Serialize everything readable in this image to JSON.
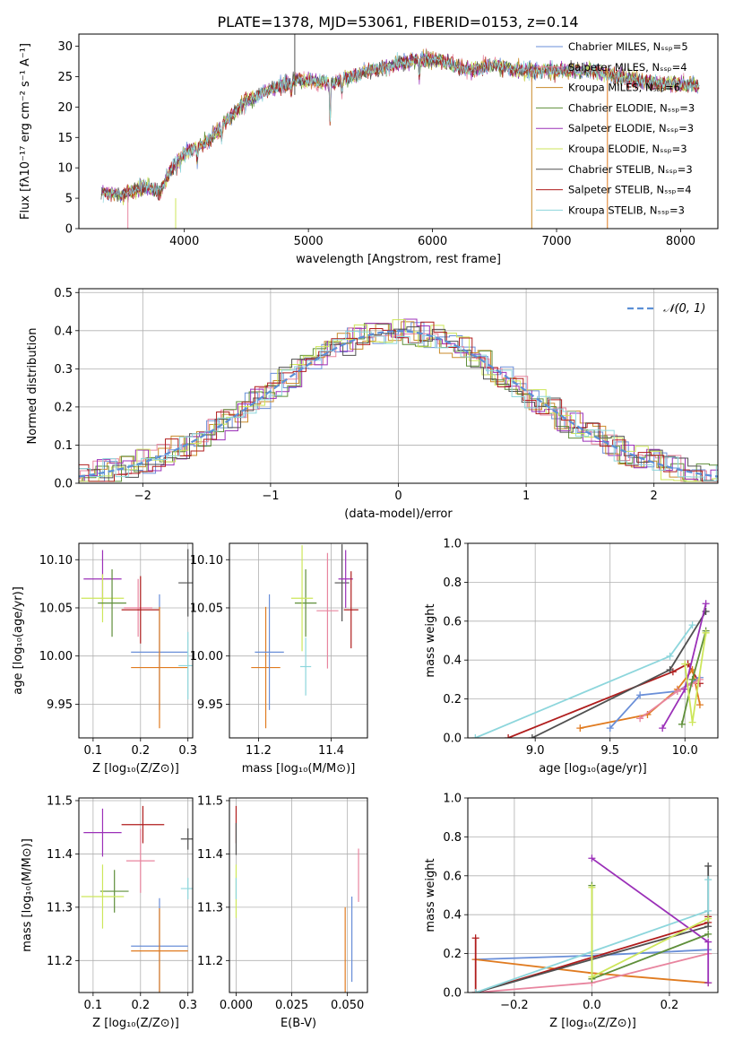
{
  "figure": {
    "title": "PLATE=1378, MJD=53061, FIBERID=0153, z=0.14"
  },
  "colors": {
    "Chabrier MILES": "#6a8fd8",
    "Salpeter MILES": "#e8859f",
    "Kroupa MILES": "#c98a2a",
    "Chabrier ELODIE": "#5f8f3a",
    "Salpeter ELODIE": "#9b30b8",
    "Kroupa ELODIE": "#cde65a",
    "Chabrier STELIB": "#505050",
    "Salpeter STELIB": "#b01d1d",
    "Kroupa STELIB": "#8dd6dc",
    "MILES mass line": "#e07b20",
    "normal curve": "#5b8fd6"
  },
  "chart_data": [
    {
      "id": "spectrum",
      "type": "line",
      "title": "PLATE=1378, MJD=53061, FIBERID=0153, z=0.14",
      "xlabel": "wavelength [Angstrom, rest frame]",
      "ylabel": "Flux [fλ10⁻¹⁷ erg cm⁻² s⁻¹ A⁻¹]",
      "xlim": [
        3150,
        8300
      ],
      "ylim": [
        0,
        32
      ],
      "xticks": [
        4000,
        5000,
        6000,
        7000,
        8000
      ],
      "yticks": [
        0,
        5,
        10,
        15,
        20,
        25,
        30
      ],
      "grid": false,
      "legend_position": "top-right",
      "series": [
        {
          "name": "Chabrier MILES, Nₛₛₚ=5",
          "color_key": "Chabrier MILES"
        },
        {
          "name": "Salpeter MILES, Nₛₛₚ=4",
          "color_key": "Salpeter MILES"
        },
        {
          "name": "Kroupa MILES, Nₛₛₚ=6",
          "color_key": "Kroupa MILES"
        },
        {
          "name": "Chabrier ELODIE, Nₛₛₚ=3",
          "color_key": "Chabrier ELODIE"
        },
        {
          "name": "Salpeter ELODIE, Nₛₛₚ=3",
          "color_key": "Salpeter ELODIE"
        },
        {
          "name": "Kroupa ELODIE, Nₛₛₚ=3",
          "color_key": "Kroupa ELODIE"
        },
        {
          "name": "Chabrier STELIB, Nₛₛₚ=3",
          "color_key": "Chabrier STELIB"
        },
        {
          "name": "Salpeter STELIB, Nₛₛₚ=4",
          "color_key": "Salpeter STELIB"
        },
        {
          "name": "Kroupa STELIB, Nₛₛₚ=3",
          "color_key": "Kroupa STELIB"
        }
      ],
      "continuum": [
        [
          3330,
          6.0
        ],
        [
          3500,
          5.5
        ],
        [
          3700,
          7.0
        ],
        [
          3800,
          6.0
        ],
        [
          3900,
          10.0
        ],
        [
          4000,
          12.5
        ],
        [
          4200,
          14.5
        ],
        [
          4300,
          17.0
        ],
        [
          4500,
          21.0
        ],
        [
          4700,
          23.0
        ],
        [
          4900,
          24.5
        ],
        [
          5200,
          24.0
        ],
        [
          5400,
          25.5
        ],
        [
          5700,
          27.0
        ],
        [
          5900,
          28.0
        ],
        [
          6100,
          27.5
        ],
        [
          6300,
          26.0
        ],
        [
          6500,
          27.0
        ],
        [
          6700,
          26.0
        ],
        [
          6900,
          26.0
        ],
        [
          7100,
          26.0
        ],
        [
          7300,
          26.0
        ],
        [
          7600,
          24.5
        ],
        [
          7800,
          24.0
        ],
        [
          8150,
          23.5
        ]
      ],
      "absorption": [
        [
          3934,
          1.0
        ],
        [
          3968,
          1.0
        ],
        [
          4102,
          2.5
        ],
        [
          4300,
          2.5
        ],
        [
          4861,
          2.0
        ],
        [
          5175,
          6.5
        ],
        [
          5270,
          2.0
        ],
        [
          5893,
          3.0
        ],
        [
          6563,
          1.0
        ]
      ]
    },
    {
      "id": "residuals",
      "type": "line",
      "xlabel": "(data-model)/error",
      "ylabel": "Normed distribution",
      "xlim": [
        -2.5,
        2.5
      ],
      "ylim": [
        0,
        0.51
      ],
      "xticks": [
        -2,
        -1,
        0,
        1,
        2
      ],
      "yticks": [
        0.0,
        0.1,
        0.2,
        0.3,
        0.4,
        0.5
      ],
      "grid": true,
      "legend_position": "top-right",
      "normal_label": "𝒩(0, 1)",
      "bin_width": 0.1
    },
    {
      "id": "age-vs-Z",
      "type": "scatter",
      "xlabel": "Z [log₁₀(Z/Z⊙)]",
      "ylabel": "age  [log₁₀(age/yr)]",
      "xlim": [
        0.07,
        0.31
      ],
      "ylim": [
        9.915,
        10.117
      ],
      "xticks": [
        0.1,
        0.2,
        0.3
      ],
      "yticks": [
        9.95,
        10.0,
        10.05,
        10.1
      ],
      "grid": true,
      "points": [
        {
          "c": "Salpeter ELODIE",
          "x": 0.12,
          "xerr": 0.04,
          "y": 10.08,
          "yerr": 0.03
        },
        {
          "c": "Kroupa ELODIE",
          "x": 0.12,
          "xerr": 0.045,
          "y": 10.06,
          "yerr": 0.025
        },
        {
          "c": "Chabrier ELODIE",
          "x": 0.14,
          "xerr": 0.03,
          "y": 10.055,
          "yerr": 0.035
        },
        {
          "c": "Salpeter MILES",
          "x": 0.195,
          "xerr": 0.03,
          "y": 10.05,
          "yerr": 0.03
        },
        {
          "c": "Salpeter STELIB",
          "x": 0.2,
          "xerr": 0.04,
          "y": 10.048,
          "yerr": 0.035
        },
        {
          "c": "Chabrier MILES",
          "x": 0.24,
          "xerr": 0.06,
          "y": 10.004,
          "yerr": 0.06
        },
        {
          "c": "MILES mass line",
          "x": 0.24,
          "xerr": 0.06,
          "y": 9.988,
          "yerr": 0.063
        },
        {
          "c": "Chabrier STELIB",
          "x": 0.3,
          "xerr": 0.02,
          "y": 10.076,
          "yerr": 0.035
        },
        {
          "c": "Kroupa STELIB",
          "x": 0.3,
          "xerr": 0.02,
          "y": 9.99,
          "yerr": 0.035
        }
      ]
    },
    {
      "id": "age-vs-mass",
      "type": "scatter",
      "xlabel": "mass [log₁₀(M/M⊙)]",
      "xlim": [
        11.12,
        11.5
      ],
      "ylim": [
        9.915,
        10.117
      ],
      "xticks": [
        11.2,
        11.4
      ],
      "yticks": [
        9.95,
        10.0,
        10.05,
        10.1
      ],
      "grid": true,
      "points": [
        {
          "c": "MILES mass line",
          "x": 11.22,
          "xerr": 0.04,
          "y": 9.988,
          "yerr": 0.063
        },
        {
          "c": "Chabrier MILES",
          "x": 11.23,
          "xerr": 0.04,
          "y": 10.004,
          "yerr": 0.06
        },
        {
          "c": "Kroupa STELIB",
          "x": 11.33,
          "xerr": 0.015,
          "y": 9.989,
          "yerr": 0.03
        },
        {
          "c": "Chabrier ELODIE",
          "x": 11.33,
          "xerr": 0.03,
          "y": 10.055,
          "yerr": 0.035
        },
        {
          "c": "Kroupa ELODIE",
          "x": 11.32,
          "xerr": 0.03,
          "y": 10.06,
          "yerr": 0.055
        },
        {
          "c": "Salpeter MILES",
          "x": 11.39,
          "xerr": 0.03,
          "y": 10.047,
          "yerr": 0.06
        },
        {
          "c": "Chabrier STELIB",
          "x": 11.43,
          "xerr": 0.02,
          "y": 10.076,
          "yerr": 0.04
        },
        {
          "c": "Salpeter ELODIE",
          "x": 11.44,
          "xerr": 0.02,
          "y": 10.08,
          "yerr": 0.03
        },
        {
          "c": "Salpeter STELIB",
          "x": 11.455,
          "xerr": 0.02,
          "y": 10.048,
          "yerr": 0.04
        }
      ]
    },
    {
      "id": "weight-vs-age",
      "type": "line",
      "xlabel": "age  [log₁₀(age/yr)]",
      "ylabel": "mass weight",
      "xlim": [
        8.55,
        10.22
      ],
      "ylim": [
        0,
        1.0
      ],
      "xticks": [
        9.0,
        9.5,
        10.0
      ],
      "yticks": [
        0.0,
        0.2,
        0.4,
        0.6,
        0.8,
        1.0
      ],
      "grid": true,
      "series": [
        {
          "c": "Kroupa STELIB",
          "x": [
            8.6,
            9.9,
            10.05
          ],
          "y": [
            0.0,
            0.42,
            0.58
          ]
        },
        {
          "c": "Salpeter STELIB",
          "x": [
            8.82,
            9.92,
            10.02,
            10.1
          ],
          "y": [
            0.0,
            0.34,
            0.38,
            0.28
          ]
        },
        {
          "c": "Chabrier STELIB",
          "x": [
            8.98,
            9.9,
            10.14
          ],
          "y": [
            0.0,
            0.35,
            0.65
          ]
        },
        {
          "c": "MILES mass line",
          "x": [
            9.3,
            9.75,
            9.95,
            10.05,
            10.1
          ],
          "y": [
            0.05,
            0.12,
            0.25,
            0.35,
            0.17
          ]
        },
        {
          "c": "Chabrier MILES",
          "x": [
            9.5,
            9.7,
            9.95,
            10.1
          ],
          "y": [
            0.05,
            0.22,
            0.24,
            0.31
          ]
        },
        {
          "c": "Salpeter MILES",
          "x": [
            9.7,
            9.95,
            10.05,
            10.1
          ],
          "y": [
            0.1,
            0.24,
            0.28,
            0.3
          ]
        },
        {
          "c": "Salpeter ELODIE",
          "x": [
            9.85,
            10.0,
            10.14
          ],
          "y": [
            0.05,
            0.25,
            0.69
          ]
        },
        {
          "c": "Chabrier ELODIE",
          "x": [
            9.98,
            10.05,
            10.14
          ],
          "y": [
            0.07,
            0.3,
            0.55
          ]
        },
        {
          "c": "Kroupa ELODIE",
          "x": [
            10.0,
            10.05,
            10.14
          ],
          "y": [
            0.38,
            0.08,
            0.54
          ]
        }
      ]
    },
    {
      "id": "mass-vs-Z",
      "type": "scatter",
      "xlabel": "Z [log₁₀(Z/Z⊙)]",
      "ylabel": "mass [log₁₀(M/M⊙)]",
      "xlim": [
        0.07,
        0.31
      ],
      "ylim": [
        11.14,
        11.505
      ],
      "xticks": [
        0.1,
        0.2,
        0.3
      ],
      "yticks": [
        11.2,
        11.3,
        11.4,
        11.5
      ],
      "grid": true,
      "points": [
        {
          "c": "Salpeter ELODIE",
          "x": 0.12,
          "xerr": 0.04,
          "y": 11.44,
          "yerr": 0.045
        },
        {
          "c": "Salpeter STELIB",
          "x": 0.205,
          "xerr": 0.045,
          "y": 11.455,
          "yerr": 0.035
        },
        {
          "c": "Salpeter MILES",
          "x": 0.2,
          "xerr": 0.03,
          "y": 11.387,
          "yerr": 0.06
        },
        {
          "c": "Chabrier STELIB",
          "x": 0.3,
          "xerr": 0.015,
          "y": 11.428,
          "yerr": 0.02
        },
        {
          "c": "Kroupa STELIB",
          "x": 0.3,
          "xerr": 0.015,
          "y": 11.335,
          "yerr": 0.02
        },
        {
          "c": "Chabrier ELODIE",
          "x": 0.145,
          "xerr": 0.03,
          "y": 11.33,
          "yerr": 0.04
        },
        {
          "c": "Kroupa ELODIE",
          "x": 0.12,
          "xerr": 0.045,
          "y": 11.32,
          "yerr": 0.06
        },
        {
          "c": "Chabrier MILES",
          "x": 0.24,
          "xerr": 0.06,
          "y": 11.227,
          "yerr": 0.09
        },
        {
          "c": "MILES mass line",
          "x": 0.24,
          "xerr": 0.06,
          "y": 11.218,
          "yerr": 0.08
        }
      ]
    },
    {
      "id": "mass-vs-ebv",
      "type": "scatter",
      "xlabel": "E(B-V)",
      "xlim": [
        -0.003,
        0.059
      ],
      "ylim": [
        11.14,
        11.505
      ],
      "xticks": [
        0.0,
        0.025,
        0.05
      ],
      "yticks": [
        11.2,
        11.3,
        11.4,
        11.5
      ],
      "grid": true,
      "points": [
        {
          "c": "Salpeter STELIB",
          "x": 0.0,
          "xerr": 0.0,
          "y": 11.455,
          "yerr": 0.035
        },
        {
          "c": "Chabrier STELIB",
          "x": 0.0,
          "xerr": 0.0,
          "y": 11.428,
          "yerr": 0.03
        },
        {
          "c": "Kroupa ELODIE",
          "x": 0.0,
          "xerr": 0.0,
          "y": 11.33,
          "yerr": 0.05
        },
        {
          "c": "Kroupa STELIB",
          "x": 0.0,
          "xerr": 0.0,
          "y": 11.335,
          "yerr": 0.02
        },
        {
          "c": "Salpeter MILES",
          "x": 0.055,
          "xerr": 0.0,
          "y": 11.36,
          "yerr": 0.05
        },
        {
          "c": "Chabrier MILES",
          "x": 0.052,
          "xerr": 0.0,
          "y": 11.24,
          "yerr": 0.08
        },
        {
          "c": "MILES mass line",
          "x": 0.049,
          "xerr": 0.0,
          "y": 11.22,
          "yerr": 0.08
        }
      ]
    },
    {
      "id": "weight-vs-Z",
      "type": "line",
      "xlabel": "Z [log₁₀(Z/Z⊙)]",
      "ylabel": "mass weight",
      "xlim": [
        -0.32,
        0.325
      ],
      "ylim": [
        0,
        1.0
      ],
      "xticks": [
        -0.2,
        0.0,
        0.2
      ],
      "yticks": [
        0.0,
        0.2,
        0.4,
        0.6,
        0.8,
        1.0
      ],
      "grid": true,
      "series": [
        {
          "c": "Chabrier MILES",
          "x": [
            -0.3,
            0.0,
            0.3
          ],
          "y": [
            0.17,
            0.19,
            0.22
          ]
        },
        {
          "c": "MILES mass line",
          "x": [
            -0.3,
            0.0,
            0.3
          ],
          "y": [
            0.17,
            0.1,
            0.05
          ]
        },
        {
          "c": "Salpeter MILES",
          "x": [
            -0.3,
            0.0,
            0.3
          ],
          "y": [
            0.0,
            0.05,
            0.2
          ]
        },
        {
          "c": "Salpeter STELIB",
          "x": [
            -0.3,
            -0.3,
            0.3,
            0.3
          ],
          "y": [
            0.28,
            0.0,
            0.36,
            0.39
          ]
        },
        {
          "c": "Chabrier STELIB",
          "x": [
            -0.3,
            0.3,
            0.3
          ],
          "y": [
            0.0,
            0.34,
            0.65
          ]
        },
        {
          "c": "Kroupa STELIB",
          "x": [
            -0.3,
            0.3,
            0.3
          ],
          "y": [
            0.0,
            0.42,
            0.58
          ]
        },
        {
          "c": "Salpeter ELODIE",
          "x": [
            0.0,
            0.3,
            0.3
          ],
          "y": [
            0.69,
            0.26,
            0.05
          ]
        },
        {
          "c": "Chabrier ELODIE",
          "x": [
            0.0,
            0.0,
            0.3
          ],
          "y": [
            0.55,
            0.07,
            0.3
          ]
        },
        {
          "c": "Kroupa ELODIE",
          "x": [
            0.0,
            0.0,
            0.3
          ],
          "y": [
            0.54,
            0.08,
            0.38
          ]
        }
      ]
    }
  ]
}
